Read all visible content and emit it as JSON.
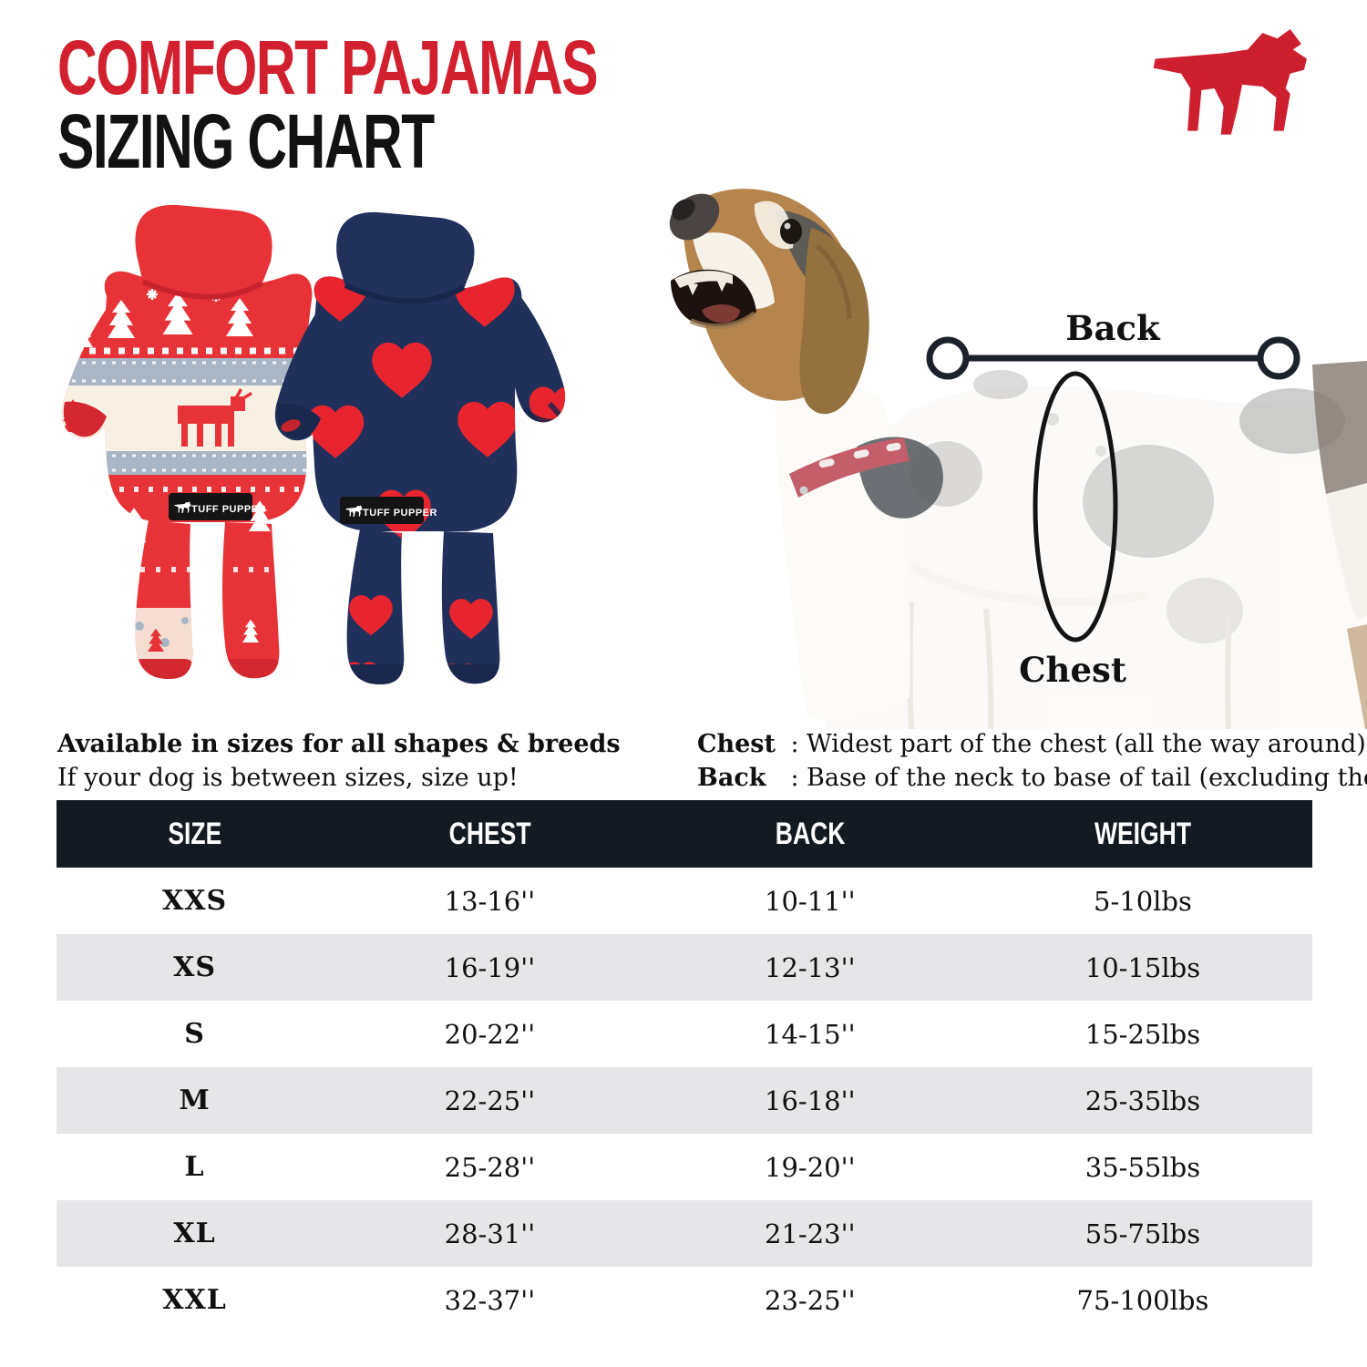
{
  "header": {
    "title_line1": "COMFORT PAJAMAS",
    "title_line2": "SIZING CHART",
    "logo_icon": "brand-dog-logo-icon"
  },
  "products": {
    "left_label": "TUFF PUPPER",
    "right_label": "TUFF PUPPER"
  },
  "availability": {
    "line1": "Available in sizes for all shapes & breeds",
    "line2": "If your dog is between sizes, size up!"
  },
  "measure_guide": {
    "back_label": "Back",
    "chest_label": "Chest",
    "definitions": [
      {
        "term": "Chest",
        "colon": ":",
        "description": "Widest part of the chest (all the way around)"
      },
      {
        "term": "Back",
        "colon": ":",
        "description": "Base of the neck to base of tail (excluding the tail)"
      }
    ]
  },
  "size_table": {
    "columns": [
      "SIZE",
      "CHEST",
      "BACK",
      "WEIGHT"
    ],
    "rows": [
      {
        "size": "XXS",
        "chest": "13-16''",
        "back": "10-11''",
        "weight": "5-10lbs"
      },
      {
        "size": "XS",
        "chest": "16-19''",
        "back": "12-13''",
        "weight": "10-15lbs"
      },
      {
        "size": "S",
        "chest": "20-22''",
        "back": "14-15''",
        "weight": "15-25lbs"
      },
      {
        "size": "M",
        "chest": "22-25''",
        "back": "16-18''",
        "weight": "25-35lbs"
      },
      {
        "size": "L",
        "chest": "25-28''",
        "back": "19-20''",
        "weight": "35-55lbs"
      },
      {
        "size": "XL",
        "chest": "28-31''",
        "back": "21-23''",
        "weight": "55-75lbs"
      },
      {
        "size": "XXL",
        "chest": "32-37''",
        "back": "23-25''",
        "weight": "75-100lbs"
      }
    ]
  },
  "colors": {
    "title_red": "#d2202e",
    "brand_red": "#ce1f2f",
    "pajama_red": "#e73337",
    "navy": "#20305b",
    "heart_red": "#e8252e",
    "pattern_gray": "#a9b6c6",
    "cream": "#f7f0e3",
    "header_bg": "#131a22",
    "row_alt": "#e6e6e8"
  }
}
